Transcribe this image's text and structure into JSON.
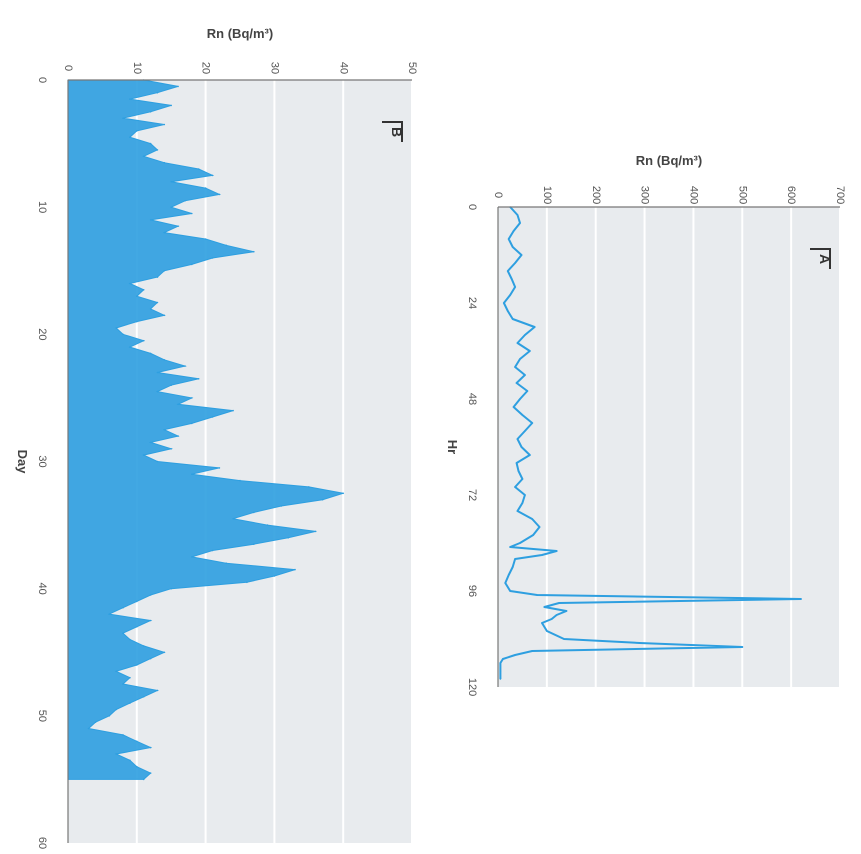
{
  "chart_data": [
    {
      "panel": "A",
      "type": "line",
      "xlabel": "Hr",
      "ylabel": "Rn (Bq/m³)",
      "xlim": [
        0,
        120
      ],
      "ylim": [
        0,
        700
      ],
      "x_ticks": [
        "0",
        "24",
        "48",
        "72",
        "96",
        "120"
      ],
      "y_ticks": [
        "0",
        "100",
        "200",
        "300",
        "400",
        "500",
        "600",
        "700"
      ],
      "grid": true,
      "series": [
        {
          "color": "#2e9fe0",
          "x": [
            0,
            2,
            4,
            6,
            8,
            10,
            12,
            14,
            16,
            18,
            20,
            22,
            24,
            26,
            28,
            30,
            32,
            34,
            36,
            38,
            40,
            42,
            44,
            46,
            48,
            50,
            52,
            54,
            56,
            58,
            60,
            62,
            64,
            66,
            68,
            70,
            72,
            74,
            76,
            78,
            80,
            82,
            84,
            85,
            86,
            87,
            88,
            90,
            92,
            94,
            96,
            97,
            98,
            99,
            100,
            101,
            102,
            103,
            104,
            106,
            108,
            109,
            110,
            111,
            112,
            113,
            114,
            116,
            118
          ],
          "y": [
            25,
            40,
            45,
            32,
            22,
            30,
            48,
            35,
            20,
            28,
            35,
            25,
            12,
            20,
            30,
            75,
            55,
            40,
            65,
            45,
            35,
            55,
            38,
            60,
            45,
            32,
            50,
            70,
            55,
            40,
            48,
            65,
            38,
            42,
            50,
            35,
            55,
            50,
            40,
            70,
            85,
            72,
            45,
            25,
            120,
            90,
            35,
            30,
            22,
            15,
            25,
            80,
            620,
            125,
            95,
            140,
            120,
            110,
            90,
            100,
            135,
            290,
            500,
            70,
            35,
            10,
            5,
            5,
            5
          ]
        }
      ]
    },
    {
      "panel": "B",
      "type": "area",
      "xlabel": "Day",
      "ylabel": "Rn (Bq/m³)",
      "xlim": [
        0,
        60
      ],
      "ylim": [
        0,
        50
      ],
      "x_ticks": [
        "0",
        "10",
        "20",
        "30",
        "40",
        "50",
        "60"
      ],
      "y_ticks": [
        "0",
        "10",
        "20",
        "30",
        "40",
        "50"
      ],
      "grid": true,
      "series": [
        {
          "color": "#2e9fe0",
          "x": [
            0,
            0.5,
            1,
            1.5,
            2,
            2.5,
            3,
            3.5,
            4,
            4.5,
            5,
            5.5,
            6,
            6.5,
            7,
            7.5,
            8,
            8.5,
            9,
            9.5,
            10,
            10.5,
            11,
            11.5,
            12,
            12.5,
            13,
            13.5,
            14,
            14.5,
            15,
            15.5,
            16,
            16.5,
            17,
            17.5,
            18,
            18.5,
            19,
            19.5,
            20,
            20.5,
            21,
            21.5,
            22,
            22.5,
            23,
            23.5,
            24,
            24.5,
            25,
            25.5,
            26,
            26.5,
            27,
            27.5,
            28,
            28.5,
            29,
            29.5,
            30,
            30.5,
            31,
            31.5,
            32,
            32.5,
            33,
            33.5,
            34,
            34.5,
            35,
            35.5,
            36,
            36.5,
            37,
            37.5,
            38,
            38.5,
            39,
            39.5,
            40,
            40.5,
            41,
            41.5,
            42,
            42.5,
            43,
            43.5,
            44,
            44.5,
            45,
            45.5,
            46,
            46.5,
            47,
            47.5,
            48,
            48.5,
            49,
            49.5,
            50,
            50.5,
            51,
            51.5,
            52,
            52.5,
            53,
            53.5,
            54,
            54.5,
            55
          ],
          "y": [
            11,
            16,
            13,
            9,
            15,
            12,
            8,
            14,
            10,
            9,
            12,
            13,
            11,
            14,
            19,
            21,
            15,
            20,
            22,
            17,
            15,
            18,
            12,
            16,
            14,
            20,
            23,
            27,
            21,
            18,
            14,
            13,
            9,
            11,
            10,
            13,
            12,
            14,
            10,
            7,
            8,
            11,
            9,
            12,
            14,
            17,
            13,
            19,
            15,
            13,
            18,
            16,
            24,
            21,
            18,
            14,
            16,
            12,
            15,
            11,
            13,
            22,
            18,
            25,
            35,
            40,
            37,
            31,
            27,
            24,
            29,
            36,
            32,
            27,
            21,
            18,
            23,
            33,
            30,
            26,
            15,
            12,
            10,
            8,
            6,
            12,
            10,
            8,
            9,
            11,
            14,
            12,
            10,
            7,
            9,
            8,
            13,
            11,
            9,
            7,
            6,
            4,
            3,
            8,
            10,
            12,
            7,
            9,
            10,
            12,
            11
          ]
        }
      ]
    }
  ]
}
